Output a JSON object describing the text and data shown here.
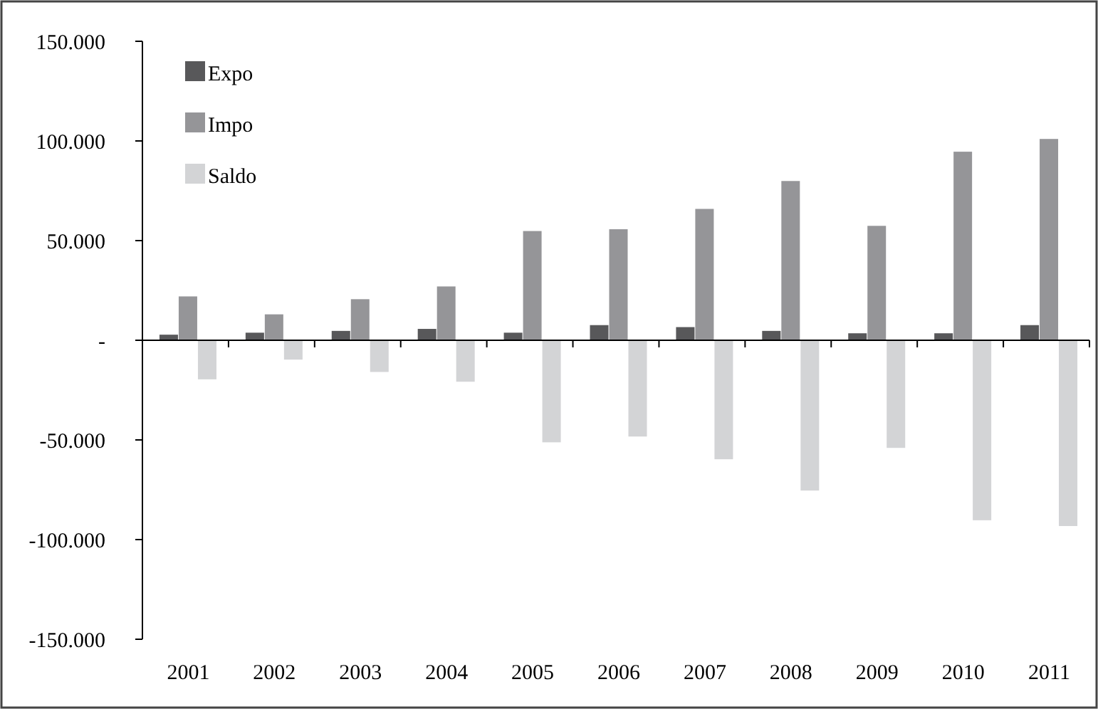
{
  "chart_data": {
    "type": "bar",
    "categories": [
      "2001",
      "2002",
      "2003",
      "2004",
      "2005",
      "2006",
      "2007",
      "2008",
      "2009",
      "2010",
      "2011"
    ],
    "series": [
      {
        "name": "Expo",
        "color": "#58585a",
        "values": [
          2800,
          3800,
          4700,
          5700,
          3800,
          7600,
          6600,
          4700,
          3500,
          3500,
          7600
        ]
      },
      {
        "name": "Impo",
        "color": "#959598",
        "values": [
          22000,
          13000,
          20600,
          27000,
          54800,
          55700,
          65900,
          79900,
          57400,
          94600,
          101000
        ]
      },
      {
        "name": "Saldo",
        "color": "#d3d4d6",
        "values": [
          -19600,
          -9700,
          -15900,
          -20800,
          -51200,
          -48300,
          -59700,
          -75400,
          -54000,
          -90300,
          -93200
        ]
      }
    ],
    "ylim": [
      -150000,
      150000
    ],
    "yticks": [
      {
        "value": -150000,
        "label": "-150.000"
      },
      {
        "value": -100000,
        "label": "-100.000"
      },
      {
        "value": -50000,
        "label": "-50.000"
      },
      {
        "value": 0,
        "label": "-"
      },
      {
        "value": 50000,
        "label": "50.000"
      },
      {
        "value": 100000,
        "label": "100.000"
      },
      {
        "value": 150000,
        "label": "150.000"
      }
    ],
    "legend": "top left"
  }
}
